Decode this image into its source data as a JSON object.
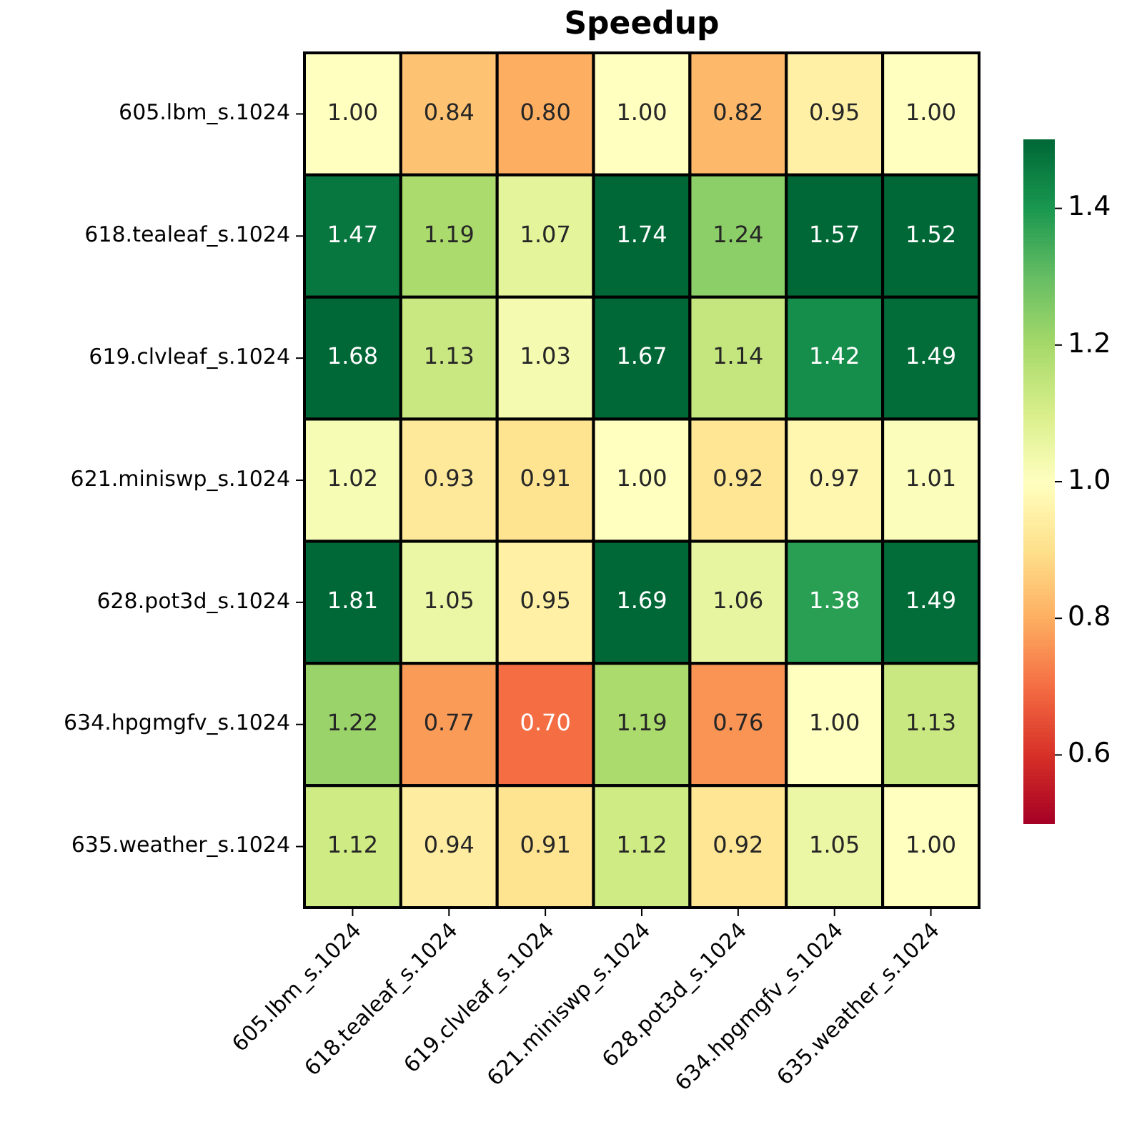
{
  "chart_data": {
    "type": "heatmap",
    "title": "Speedup",
    "categories": [
      "605.lbm_s.1024",
      "618.tealeaf_s.1024",
      "619.clvleaf_s.1024",
      "621.miniswp_s.1024",
      "628.pot3d_s.1024",
      "634.hpgmgfv_s.1024",
      "635.weather_s.1024"
    ],
    "y_categories": [
      "605.lbm_s.1024",
      "618.tealeaf_s.1024",
      "619.clvleaf_s.1024",
      "621.miniswp_s.1024",
      "628.pot3d_s.1024",
      "634.hpgmgfv_s.1024",
      "635.weather_s.1024"
    ],
    "cells": [
      [
        1.0,
        0.84,
        0.8,
        1.0,
        0.82,
        0.95,
        1.0
      ],
      [
        1.47,
        1.19,
        1.07,
        1.74,
        1.24,
        1.57,
        1.52
      ],
      [
        1.68,
        1.13,
        1.03,
        1.67,
        1.14,
        1.42,
        1.49
      ],
      [
        1.02,
        0.93,
        0.91,
        1.0,
        0.92,
        0.97,
        1.01
      ],
      [
        1.81,
        1.05,
        0.95,
        1.69,
        1.06,
        1.38,
        1.49
      ],
      [
        1.22,
        0.77,
        0.7,
        1.19,
        0.76,
        1.0,
        1.13
      ],
      [
        1.12,
        0.94,
        0.91,
        1.12,
        0.92,
        1.05,
        1.0
      ]
    ],
    "cell_labels": [
      [
        "1.00",
        "0.84",
        "0.80",
        "1.00",
        "0.82",
        "0.95",
        "1.00"
      ],
      [
        "1.47",
        "1.19",
        "1.07",
        "1.74",
        "1.24",
        "1.57",
        "1.52"
      ],
      [
        "1.68",
        "1.13",
        "1.03",
        "1.67",
        "1.14",
        "1.42",
        "1.49"
      ],
      [
        "1.02",
        "0.93",
        "0.91",
        "1.00",
        "0.92",
        "0.97",
        "1.01"
      ],
      [
        "1.81",
        "1.05",
        "0.95",
        "1.69",
        "1.06",
        "1.38",
        "1.49"
      ],
      [
        "1.22",
        "0.77",
        "0.70",
        "1.19",
        "0.76",
        "1.00",
        "1.13"
      ],
      [
        "1.12",
        "0.94",
        "0.91",
        "1.12",
        "0.92",
        "1.05",
        "1.00"
      ]
    ],
    "clim": [
      0.5,
      1.5
    ],
    "cticks": [
      {
        "value": 0.6,
        "label": "0.6"
      },
      {
        "value": 0.8,
        "label": "0.8"
      },
      {
        "value": 1.0,
        "label": "1.0"
      },
      {
        "value": 1.2,
        "label": "1.2"
      },
      {
        "value": 1.4,
        "label": "1.4"
      }
    ]
  }
}
